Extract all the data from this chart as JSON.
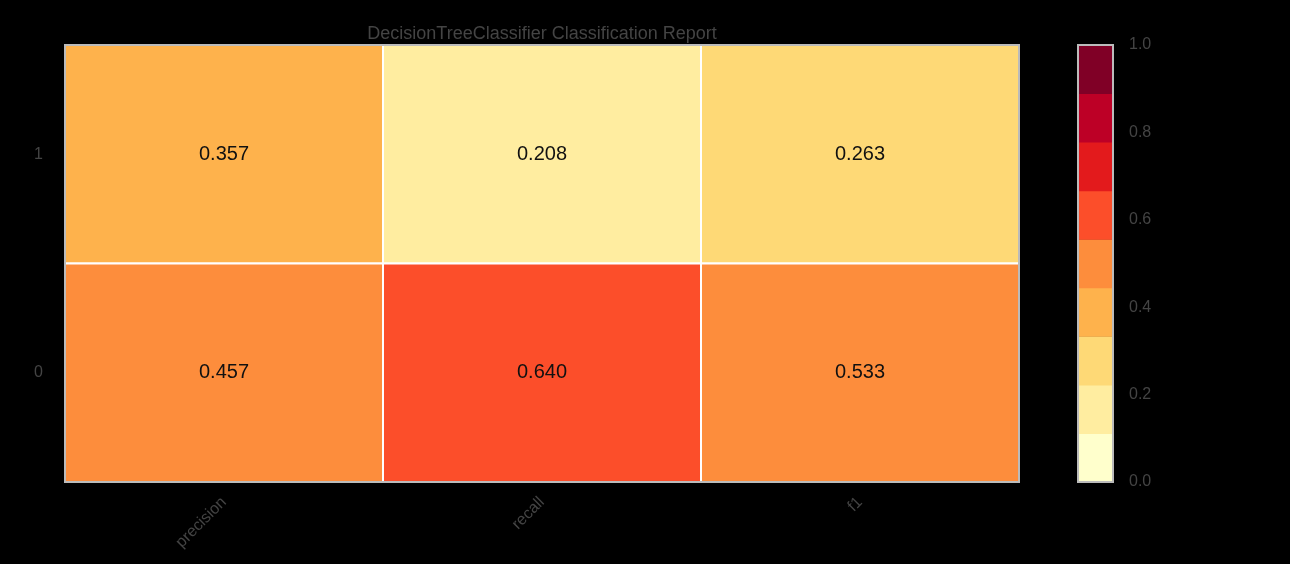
{
  "chart_data": {
    "type": "heatmap",
    "title": "DecisionTreeClassifier Classification Report",
    "categories": [
      "precision",
      "recall",
      "f1"
    ],
    "y_categories": [
      "1",
      "0"
    ],
    "cells": [
      [
        0.357,
        0.208,
        0.263
      ],
      [
        0.457,
        0.64,
        0.533
      ]
    ],
    "cell_labels": [
      [
        "0.357",
        "0.208",
        "0.263"
      ],
      [
        "0.457",
        "0.640",
        "0.533"
      ]
    ],
    "clim": [
      0,
      1
    ],
    "cticks": [
      {
        "value": 0,
        "label": "0.0"
      },
      {
        "value": 0.2,
        "label": "0.2"
      },
      {
        "value": 0.4,
        "label": "0.4"
      },
      {
        "value": 0.6,
        "label": "0.6"
      },
      {
        "value": 0.8,
        "label": "0.8"
      },
      {
        "value": 1,
        "label": "1.0"
      }
    ]
  }
}
